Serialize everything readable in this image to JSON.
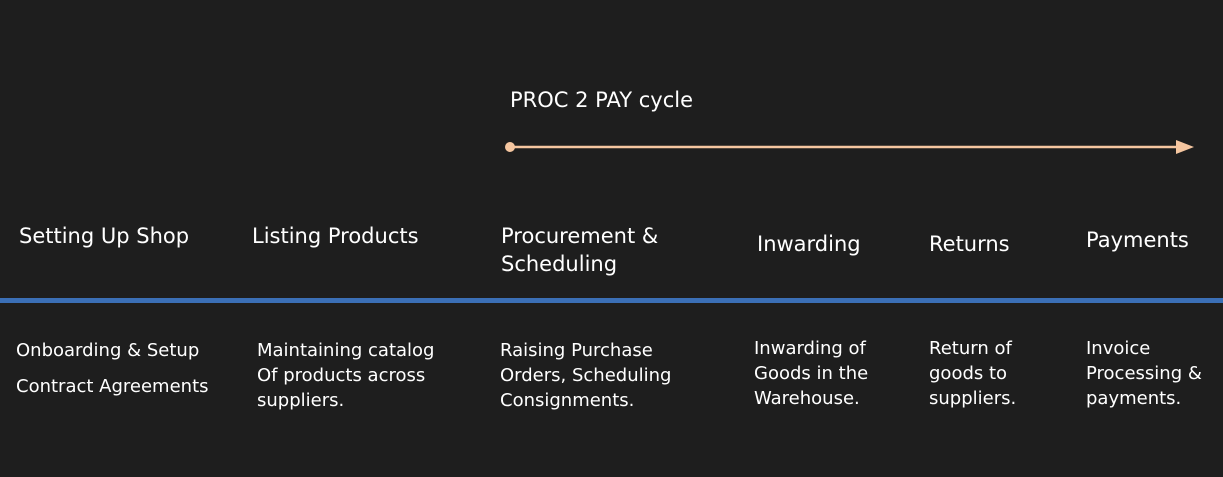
{
  "cycle": {
    "label": "PROC 2 PAY cycle",
    "color": "#f5c6a0"
  },
  "stages": [
    {
      "title_lines": [
        "Setting Up Shop"
      ],
      "description_lines": [
        "Onboarding & Setup",
        "Contract Agreements"
      ]
    },
    {
      "title_lines": [
        "Listing Products"
      ],
      "description_lines": [
        "Maintaining catalog",
        "Of products across",
        "suppliers."
      ]
    },
    {
      "title_lines": [
        "Procurement &",
        "Scheduling"
      ],
      "description_lines": [
        "Raising Purchase",
        "Orders, Scheduling",
        "Consignments."
      ]
    },
    {
      "title_lines": [
        "Inwarding"
      ],
      "description_lines": [
        "Inwarding of",
        "Goods in the",
        "Warehouse."
      ]
    },
    {
      "title_lines": [
        "Returns"
      ],
      "description_lines": [
        "Return of",
        "goods to",
        "suppliers."
      ]
    },
    {
      "title_lines": [
        "Payments"
      ],
      "description_lines": [
        "Invoice",
        "Processing &",
        "payments."
      ]
    }
  ],
  "colors": {
    "background": "#1e1e1e",
    "text": "#ffffff",
    "divider": "#3b6fb6",
    "arrow": "#f5c6a0"
  }
}
